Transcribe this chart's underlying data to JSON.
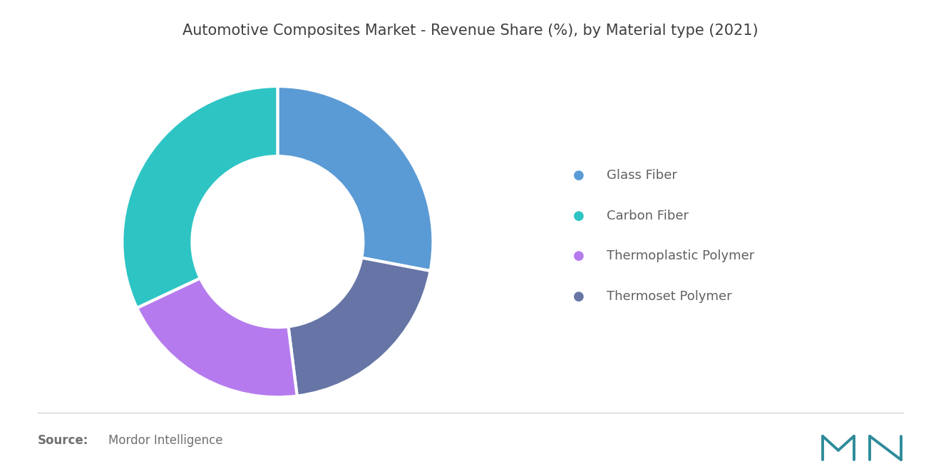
{
  "title": "Automotive Composites Market - Revenue Share (%), by Material type (2021)",
  "labels": [
    "Glass Fiber",
    "Carbon Fiber",
    "Thermoplastic Polymer",
    "Thermoset Polymer"
  ],
  "values": [
    28,
    20,
    20,
    32
  ],
  "colors": [
    "#5B9BD5",
    "#6675A5",
    "#B57BEE",
    "#2EC4C4"
  ],
  "order_note": "clockwise from top: Glass Fiber, Thermoset Polymer, Thermoplastic Polymer, Carbon Fiber",
  "donut_width": 0.45,
  "background_color": "#ffffff",
  "title_color": "#404040",
  "title_fontsize": 15,
  "legend_fontsize": 13,
  "legend_text_color": "#606060",
  "source_bold": "Source:",
  "source_text": "Mordor Intelligence",
  "source_fontsize": 12,
  "source_color": "#707070",
  "logo_color": "#2E8B9A"
}
